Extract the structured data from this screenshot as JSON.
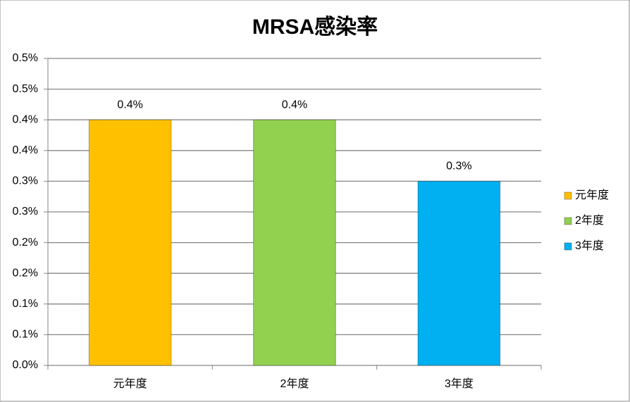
{
  "chart_data": {
    "type": "bar",
    "title": "MRSA感染率",
    "categories": [
      "元年度",
      "2年度",
      "3年度"
    ],
    "values": [
      0.4,
      0.4,
      0.3
    ],
    "value_labels": [
      "0.4%",
      "0.4%",
      "0.3%"
    ],
    "colors": [
      "#ffc000",
      "#92d050",
      "#00b0f0"
    ],
    "ylim": [
      0,
      0.5
    ],
    "yticks": [
      {
        "value": 0,
        "label": "0.0%"
      },
      {
        "value": 0.05,
        "label": "0.1%"
      },
      {
        "value": 0.1,
        "label": "0.1%"
      },
      {
        "value": 0.15,
        "label": "0.2%"
      },
      {
        "value": 0.2,
        "label": "0.2%"
      },
      {
        "value": 0.25,
        "label": "0.3%"
      },
      {
        "value": 0.3,
        "label": "0.3%"
      },
      {
        "value": 0.35,
        "label": "0.4%"
      },
      {
        "value": 0.4,
        "label": "0.4%"
      },
      {
        "value": 0.45,
        "label": "0.5%"
      },
      {
        "value": 0.5,
        "label": "0.5%"
      }
    ],
    "grid": true,
    "legend": "right"
  }
}
